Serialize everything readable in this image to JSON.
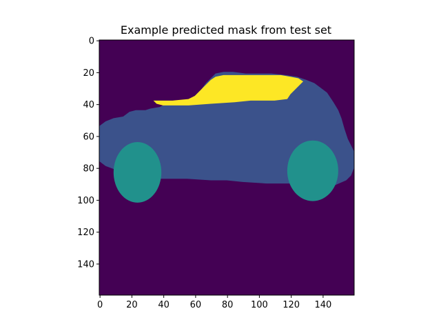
{
  "chart_data": {
    "type": "heatmap",
    "title": "Example predicted mask from test set",
    "xlabel": "",
    "ylabel": "",
    "xlim": [
      0,
      160
    ],
    "ylim": [
      160,
      0
    ],
    "xticks": [
      "0",
      "20",
      "40",
      "60",
      "80",
      "100",
      "120",
      "140"
    ],
    "yticks": [
      "0",
      "20",
      "40",
      "60",
      "80",
      "100",
      "120",
      "140"
    ],
    "grid": false,
    "colormap": "viridis",
    "class_colors": {
      "background": "#440154",
      "body": "#3b528b",
      "wheel": "#21918c",
      "window": "#fde725"
    },
    "regions": [
      {
        "name": "body",
        "polygon": [
          [
            0,
            54
          ],
          [
            4,
            51
          ],
          [
            9,
            49
          ],
          [
            15,
            48
          ],
          [
            19,
            45
          ],
          [
            23,
            44
          ],
          [
            29,
            44
          ],
          [
            32,
            43
          ],
          [
            38,
            42
          ],
          [
            42,
            40
          ],
          [
            46,
            39
          ],
          [
            53,
            38
          ],
          [
            57,
            37
          ],
          [
            60,
            35
          ],
          [
            64,
            31
          ],
          [
            67,
            27
          ],
          [
            70,
            24
          ],
          [
            73,
            21
          ],
          [
            78,
            20
          ],
          [
            84,
            20
          ],
          [
            92,
            21
          ],
          [
            108,
            21
          ],
          [
            117,
            22
          ],
          [
            124,
            23
          ],
          [
            130,
            25
          ],
          [
            135,
            27
          ],
          [
            139,
            30
          ],
          [
            143,
            33
          ],
          [
            147,
            39
          ],
          [
            150,
            44
          ],
          [
            152,
            49
          ],
          [
            154,
            56
          ],
          [
            156,
            62
          ],
          [
            158,
            66
          ],
          [
            160,
            70
          ],
          [
            160,
            80
          ],
          [
            158,
            85
          ],
          [
            155,
            88
          ],
          [
            148,
            91
          ],
          [
            140,
            92
          ],
          [
            128,
            90
          ],
          [
            115,
            90
          ],
          [
            105,
            90
          ],
          [
            90,
            89
          ],
          [
            80,
            88
          ],
          [
            70,
            88
          ],
          [
            55,
            87
          ],
          [
            40,
            87
          ],
          [
            32,
            87
          ],
          [
            22,
            86
          ],
          [
            12,
            82
          ],
          [
            4,
            79
          ],
          [
            0,
            76
          ]
        ]
      },
      {
        "name": "window",
        "polygon": [
          [
            34,
            38
          ],
          [
            46,
            38
          ],
          [
            56,
            37
          ],
          [
            60,
            35
          ],
          [
            64,
            31
          ],
          [
            67,
            28
          ],
          [
            70,
            25
          ],
          [
            73,
            23
          ],
          [
            78,
            22
          ],
          [
            84,
            22
          ],
          [
            95,
            22
          ],
          [
            105,
            22
          ],
          [
            114,
            22
          ],
          [
            120,
            23
          ],
          [
            125,
            24
          ],
          [
            128,
            26
          ],
          [
            124,
            30
          ],
          [
            120,
            34
          ],
          [
            118,
            37
          ],
          [
            110,
            38
          ],
          [
            95,
            38
          ],
          [
            85,
            39
          ],
          [
            70,
            40
          ],
          [
            56,
            41
          ],
          [
            48,
            41
          ],
          [
            40,
            41
          ],
          [
            36,
            40
          ]
        ]
      },
      {
        "name": "wheel",
        "cx": 24,
        "cy": 83,
        "rx": 15,
        "ry": 19
      },
      {
        "name": "wheel",
        "cx": 134,
        "cy": 82,
        "rx": 16,
        "ry": 19
      }
    ]
  }
}
